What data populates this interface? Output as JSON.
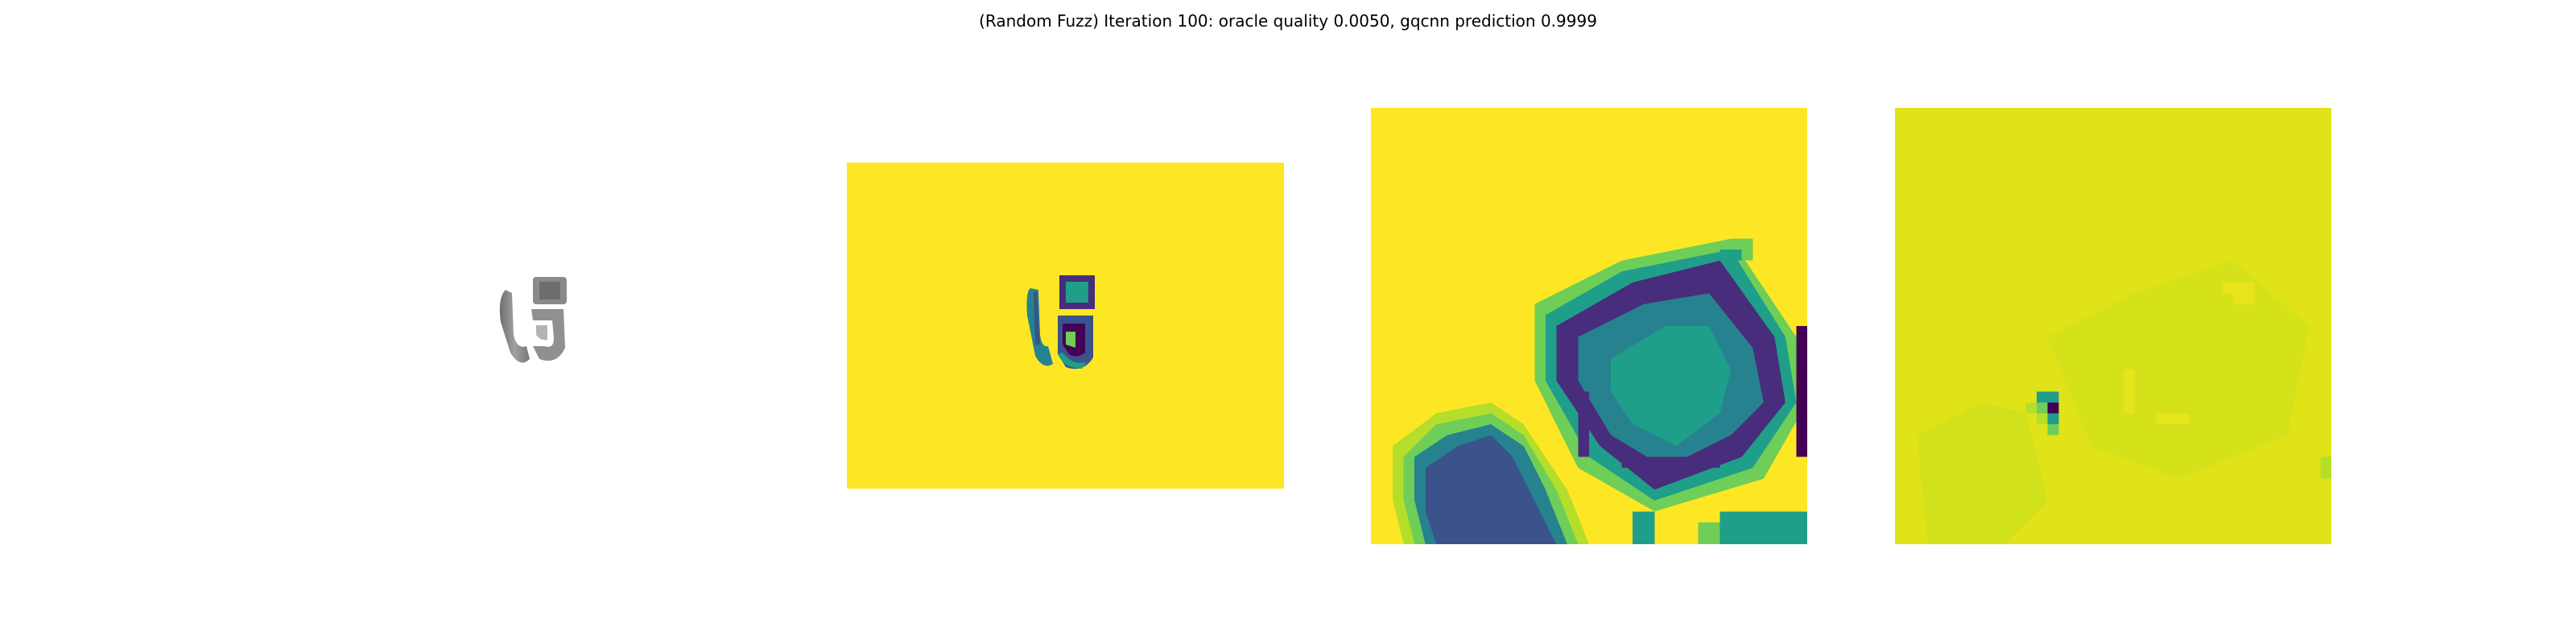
{
  "figure": {
    "title": "(Random Fuzz) Iteration 100: oracle quality 0.0050, gqcnn prediction 0.9999"
  },
  "colors": {
    "background": "#ffffff",
    "viridis_yellow": "#fde725",
    "viridis_yellow_green": "#dfe318",
    "viridis_light_green": "#b5de2b",
    "viridis_green": "#6ece58",
    "viridis_teal": "#1f9e89",
    "viridis_dark_teal": "#26828e",
    "viridis_blue": "#3b528b",
    "viridis_indigo": "#472d7b",
    "viridis_dark_purple": "#440154",
    "object_gray": "#8c8c8c"
  }
}
